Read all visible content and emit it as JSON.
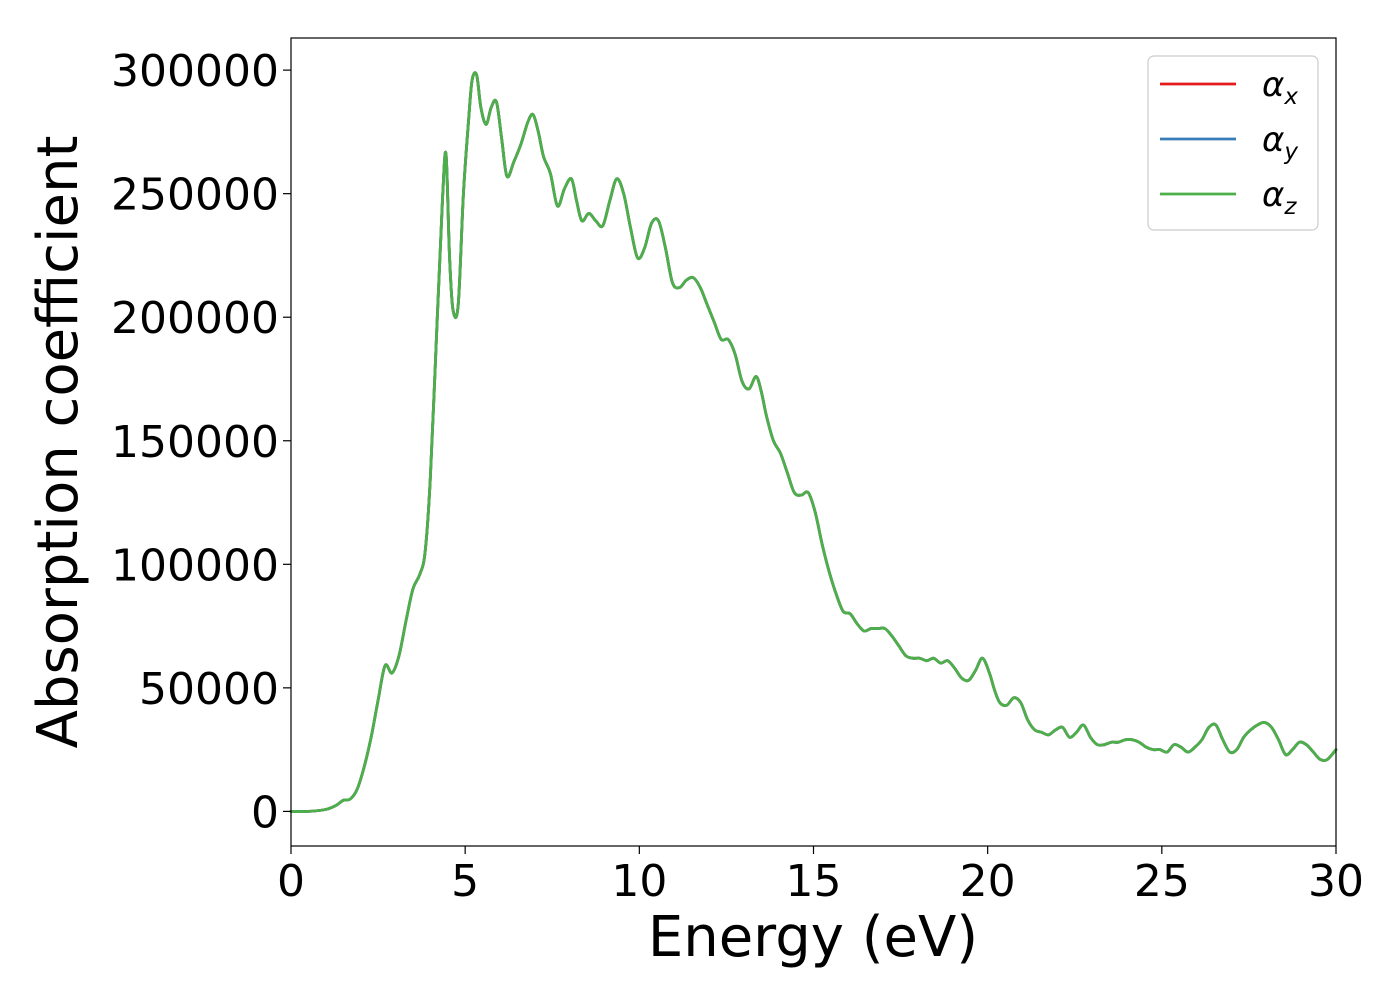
{
  "chart_data": {
    "type": "line",
    "xlabel": "Energy (eV)",
    "ylabel": "Absorption coefficient",
    "xlim": [
      0,
      30
    ],
    "ylim": [
      -14000,
      313000
    ],
    "xticks": [
      0,
      5,
      10,
      15,
      20,
      25,
      30
    ],
    "yticks": [
      0,
      50000,
      100000,
      150000,
      200000,
      250000,
      300000
    ],
    "grid": false,
    "legend_position": "top-right",
    "x": [
      0,
      0.5,
      1.0,
      1.3,
      1.5,
      1.7,
      1.9,
      2.1,
      2.3,
      2.5,
      2.7,
      2.9,
      3.1,
      3.3,
      3.5,
      3.7,
      3.85,
      4.0,
      4.2,
      4.35,
      4.45,
      4.55,
      4.65,
      4.8,
      4.95,
      5.1,
      5.2,
      5.33,
      5.45,
      5.6,
      5.75,
      5.9,
      6.05,
      6.2,
      6.4,
      6.6,
      6.8,
      6.95,
      7.1,
      7.25,
      7.45,
      7.65,
      7.85,
      8.05,
      8.2,
      8.35,
      8.55,
      8.75,
      8.95,
      9.15,
      9.35,
      9.55,
      9.75,
      9.95,
      10.15,
      10.35,
      10.55,
      10.75,
      10.95,
      11.15,
      11.35,
      11.55,
      11.75,
      11.95,
      12.15,
      12.35,
      12.55,
      12.75,
      12.95,
      13.15,
      13.35,
      13.5,
      13.65,
      13.85,
      14.05,
      14.25,
      14.45,
      14.65,
      14.85,
      15.05,
      15.25,
      15.45,
      15.65,
      15.85,
      16.05,
      16.25,
      16.45,
      16.65,
      16.85,
      17.05,
      17.25,
      17.45,
      17.65,
      17.85,
      18.05,
      18.25,
      18.45,
      18.65,
      18.85,
      19.05,
      19.25,
      19.45,
      19.65,
      19.85,
      20.05,
      20.2,
      20.35,
      20.55,
      20.75,
      20.95,
      21.15,
      21.35,
      21.55,
      21.75,
      21.95,
      22.15,
      22.35,
      22.55,
      22.75,
      22.95,
      23.15,
      23.35,
      23.55,
      23.75,
      23.95,
      24.15,
      24.35,
      24.55,
      24.75,
      24.95,
      25.15,
      25.35,
      25.55,
      25.75,
      25.95,
      26.15,
      26.35,
      26.55,
      26.75,
      26.95,
      27.15,
      27.35,
      27.55,
      27.75,
      27.95,
      28.15,
      28.35,
      28.55,
      28.75,
      28.95,
      29.15,
      29.35,
      29.55,
      29.75,
      30.0
    ],
    "series": [
      {
        "name": "α_x",
        "color": "#e41a1c",
        "values": [
          0,
          0,
          800,
          2500,
          4500,
          5000,
          9000,
          18000,
          30000,
          45000,
          59000,
          56000,
          63000,
          77000,
          90000,
          96000,
          105000,
          135000,
          200000,
          248000,
          266000,
          225000,
          203000,
          205000,
          250000,
          280000,
          296000,
          298000,
          285000,
          278000,
          285000,
          287000,
          272000,
          257000,
          263000,
          270000,
          279000,
          282000,
          275000,
          265000,
          258000,
          245000,
          252000,
          256000,
          247000,
          239000,
          242000,
          239000,
          237000,
          247000,
          256000,
          250000,
          236000,
          224000,
          228000,
          238000,
          239000,
          228000,
          214000,
          212000,
          215000,
          216000,
          212000,
          205000,
          198000,
          191000,
          191000,
          185000,
          174000,
          171000,
          176000,
          170000,
          160000,
          150000,
          145000,
          137000,
          129000,
          128000,
          129000,
          121000,
          108000,
          97000,
          88000,
          81000,
          80000,
          76000,
          73000,
          74000,
          74000,
          74000,
          71000,
          67000,
          63000,
          62000,
          62000,
          61000,
          62000,
          60000,
          61000,
          58000,
          54000,
          53000,
          57000,
          62000,
          56000,
          49000,
          44000,
          43000,
          46000,
          44000,
          37000,
          33000,
          32000,
          31000,
          33000,
          34000,
          30000,
          32000,
          35000,
          30000,
          27000,
          27000,
          28000,
          28000,
          29000,
          29000,
          28000,
          26000,
          25000,
          25000,
          24000,
          27000,
          26000,
          24000,
          26000,
          29000,
          34000,
          35000,
          29000,
          24000,
          25000,
          30000,
          33000,
          35000,
          36000,
          34000,
          29000,
          23000,
          25000,
          28000,
          27000,
          24000,
          21000,
          21000,
          25000
        ]
      },
      {
        "name": "α_y",
        "color": "#377eb8",
        "values": [
          0,
          0,
          800,
          2500,
          4500,
          5000,
          9000,
          18000,
          30000,
          45000,
          59000,
          56000,
          63000,
          77000,
          90000,
          96000,
          105000,
          135000,
          200000,
          248000,
          266000,
          225000,
          203000,
          205000,
          250000,
          280000,
          296000,
          298000,
          285000,
          278000,
          285000,
          287000,
          272000,
          257000,
          263000,
          270000,
          279000,
          282000,
          275000,
          265000,
          258000,
          245000,
          252000,
          256000,
          247000,
          239000,
          242000,
          239000,
          237000,
          247000,
          256000,
          250000,
          236000,
          224000,
          228000,
          238000,
          239000,
          228000,
          214000,
          212000,
          215000,
          216000,
          212000,
          205000,
          198000,
          191000,
          191000,
          185000,
          174000,
          171000,
          176000,
          170000,
          160000,
          150000,
          145000,
          137000,
          129000,
          128000,
          129000,
          121000,
          108000,
          97000,
          88000,
          81000,
          80000,
          76000,
          73000,
          74000,
          74000,
          74000,
          71000,
          67000,
          63000,
          62000,
          62000,
          61000,
          62000,
          60000,
          61000,
          58000,
          54000,
          53000,
          57000,
          62000,
          56000,
          49000,
          44000,
          43000,
          46000,
          44000,
          37000,
          33000,
          32000,
          31000,
          33000,
          34000,
          30000,
          32000,
          35000,
          30000,
          27000,
          27000,
          28000,
          28000,
          29000,
          29000,
          28000,
          26000,
          25000,
          25000,
          24000,
          27000,
          26000,
          24000,
          26000,
          29000,
          34000,
          35000,
          29000,
          24000,
          25000,
          30000,
          33000,
          35000,
          36000,
          34000,
          29000,
          23000,
          25000,
          28000,
          27000,
          24000,
          21000,
          21000,
          25000
        ]
      },
      {
        "name": "α_z",
        "color": "#4daf4a",
        "values": [
          0,
          0,
          800,
          2500,
          4500,
          5000,
          9000,
          18000,
          30000,
          45000,
          59000,
          56000,
          63000,
          77000,
          90000,
          96000,
          105000,
          135000,
          200000,
          248000,
          266000,
          225000,
          203000,
          205000,
          250000,
          280000,
          296000,
          298000,
          285000,
          278000,
          285000,
          287000,
          272000,
          257000,
          263000,
          270000,
          279000,
          282000,
          275000,
          265000,
          258000,
          245000,
          252000,
          256000,
          247000,
          239000,
          242000,
          239000,
          237000,
          247000,
          256000,
          250000,
          236000,
          224000,
          228000,
          238000,
          239000,
          228000,
          214000,
          212000,
          215000,
          216000,
          212000,
          205000,
          198000,
          191000,
          191000,
          185000,
          174000,
          171000,
          176000,
          170000,
          160000,
          150000,
          145000,
          137000,
          129000,
          128000,
          129000,
          121000,
          108000,
          97000,
          88000,
          81000,
          80000,
          76000,
          73000,
          74000,
          74000,
          74000,
          71000,
          67000,
          63000,
          62000,
          62000,
          61000,
          62000,
          60000,
          61000,
          58000,
          54000,
          53000,
          57000,
          62000,
          56000,
          49000,
          44000,
          43000,
          46000,
          44000,
          37000,
          33000,
          32000,
          31000,
          33000,
          34000,
          30000,
          32000,
          35000,
          30000,
          27000,
          27000,
          28000,
          28000,
          29000,
          29000,
          28000,
          26000,
          25000,
          25000,
          24000,
          27000,
          26000,
          24000,
          26000,
          29000,
          34000,
          35000,
          29000,
          24000,
          25000,
          30000,
          33000,
          35000,
          36000,
          34000,
          29000,
          23000,
          25000,
          28000,
          27000,
          24000,
          21000,
          21000,
          25000
        ]
      }
    ],
    "legend": [
      {
        "symbol": "α",
        "subscript": "x"
      },
      {
        "symbol": "α",
        "subscript": "y"
      },
      {
        "symbol": "α",
        "subscript": "z"
      }
    ]
  }
}
